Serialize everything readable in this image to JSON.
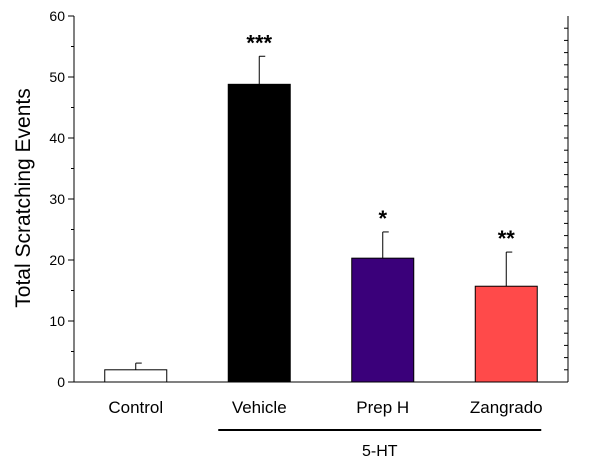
{
  "chart_data": {
    "type": "bar",
    "categories": [
      "Control",
      "Vehicle",
      "Prep H",
      "Zangrado"
    ],
    "values": [
      2,
      48.8,
      20.3,
      15.7
    ],
    "errors": [
      1.1,
      4.6,
      4.3,
      5.6
    ],
    "bar_colors": [
      "#ffffff",
      "#000000",
      "#3a007a",
      "#ff4a4a"
    ],
    "significance": [
      "",
      "***",
      "*",
      "**"
    ],
    "ylabel": "Total Scratching Events",
    "xlabel": "",
    "ylim": [
      0,
      60
    ],
    "yticks": [
      0,
      10,
      20,
      30,
      40,
      50,
      60
    ],
    "grid": false,
    "group_label": "5-HT",
    "group_categories": [
      "Vehicle",
      "Prep H",
      "Zangrado"
    ]
  }
}
